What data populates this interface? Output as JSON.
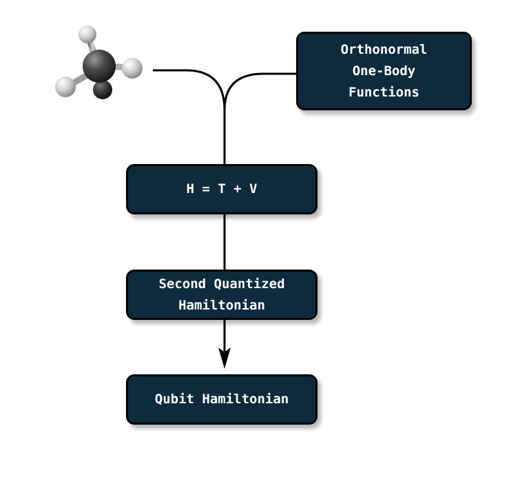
{
  "boxes": {
    "orbitals": {
      "line1": "Orthonormal",
      "line2": "One-Body",
      "line3": "Functions"
    },
    "hamiltonian": {
      "label": "H = T + V"
    },
    "second_quantized": {
      "line1": "Second Quantized",
      "line2": "Hamiltonian"
    },
    "qubit": {
      "label": "Qubit Hamiltonian"
    }
  },
  "colors": {
    "box_fill": "#0e2a3d",
    "box_text": "#ffffff",
    "line": "#000000",
    "background": "#ffffff"
  },
  "icons": {
    "molecule": "methane-ball-and-stick-icon"
  }
}
